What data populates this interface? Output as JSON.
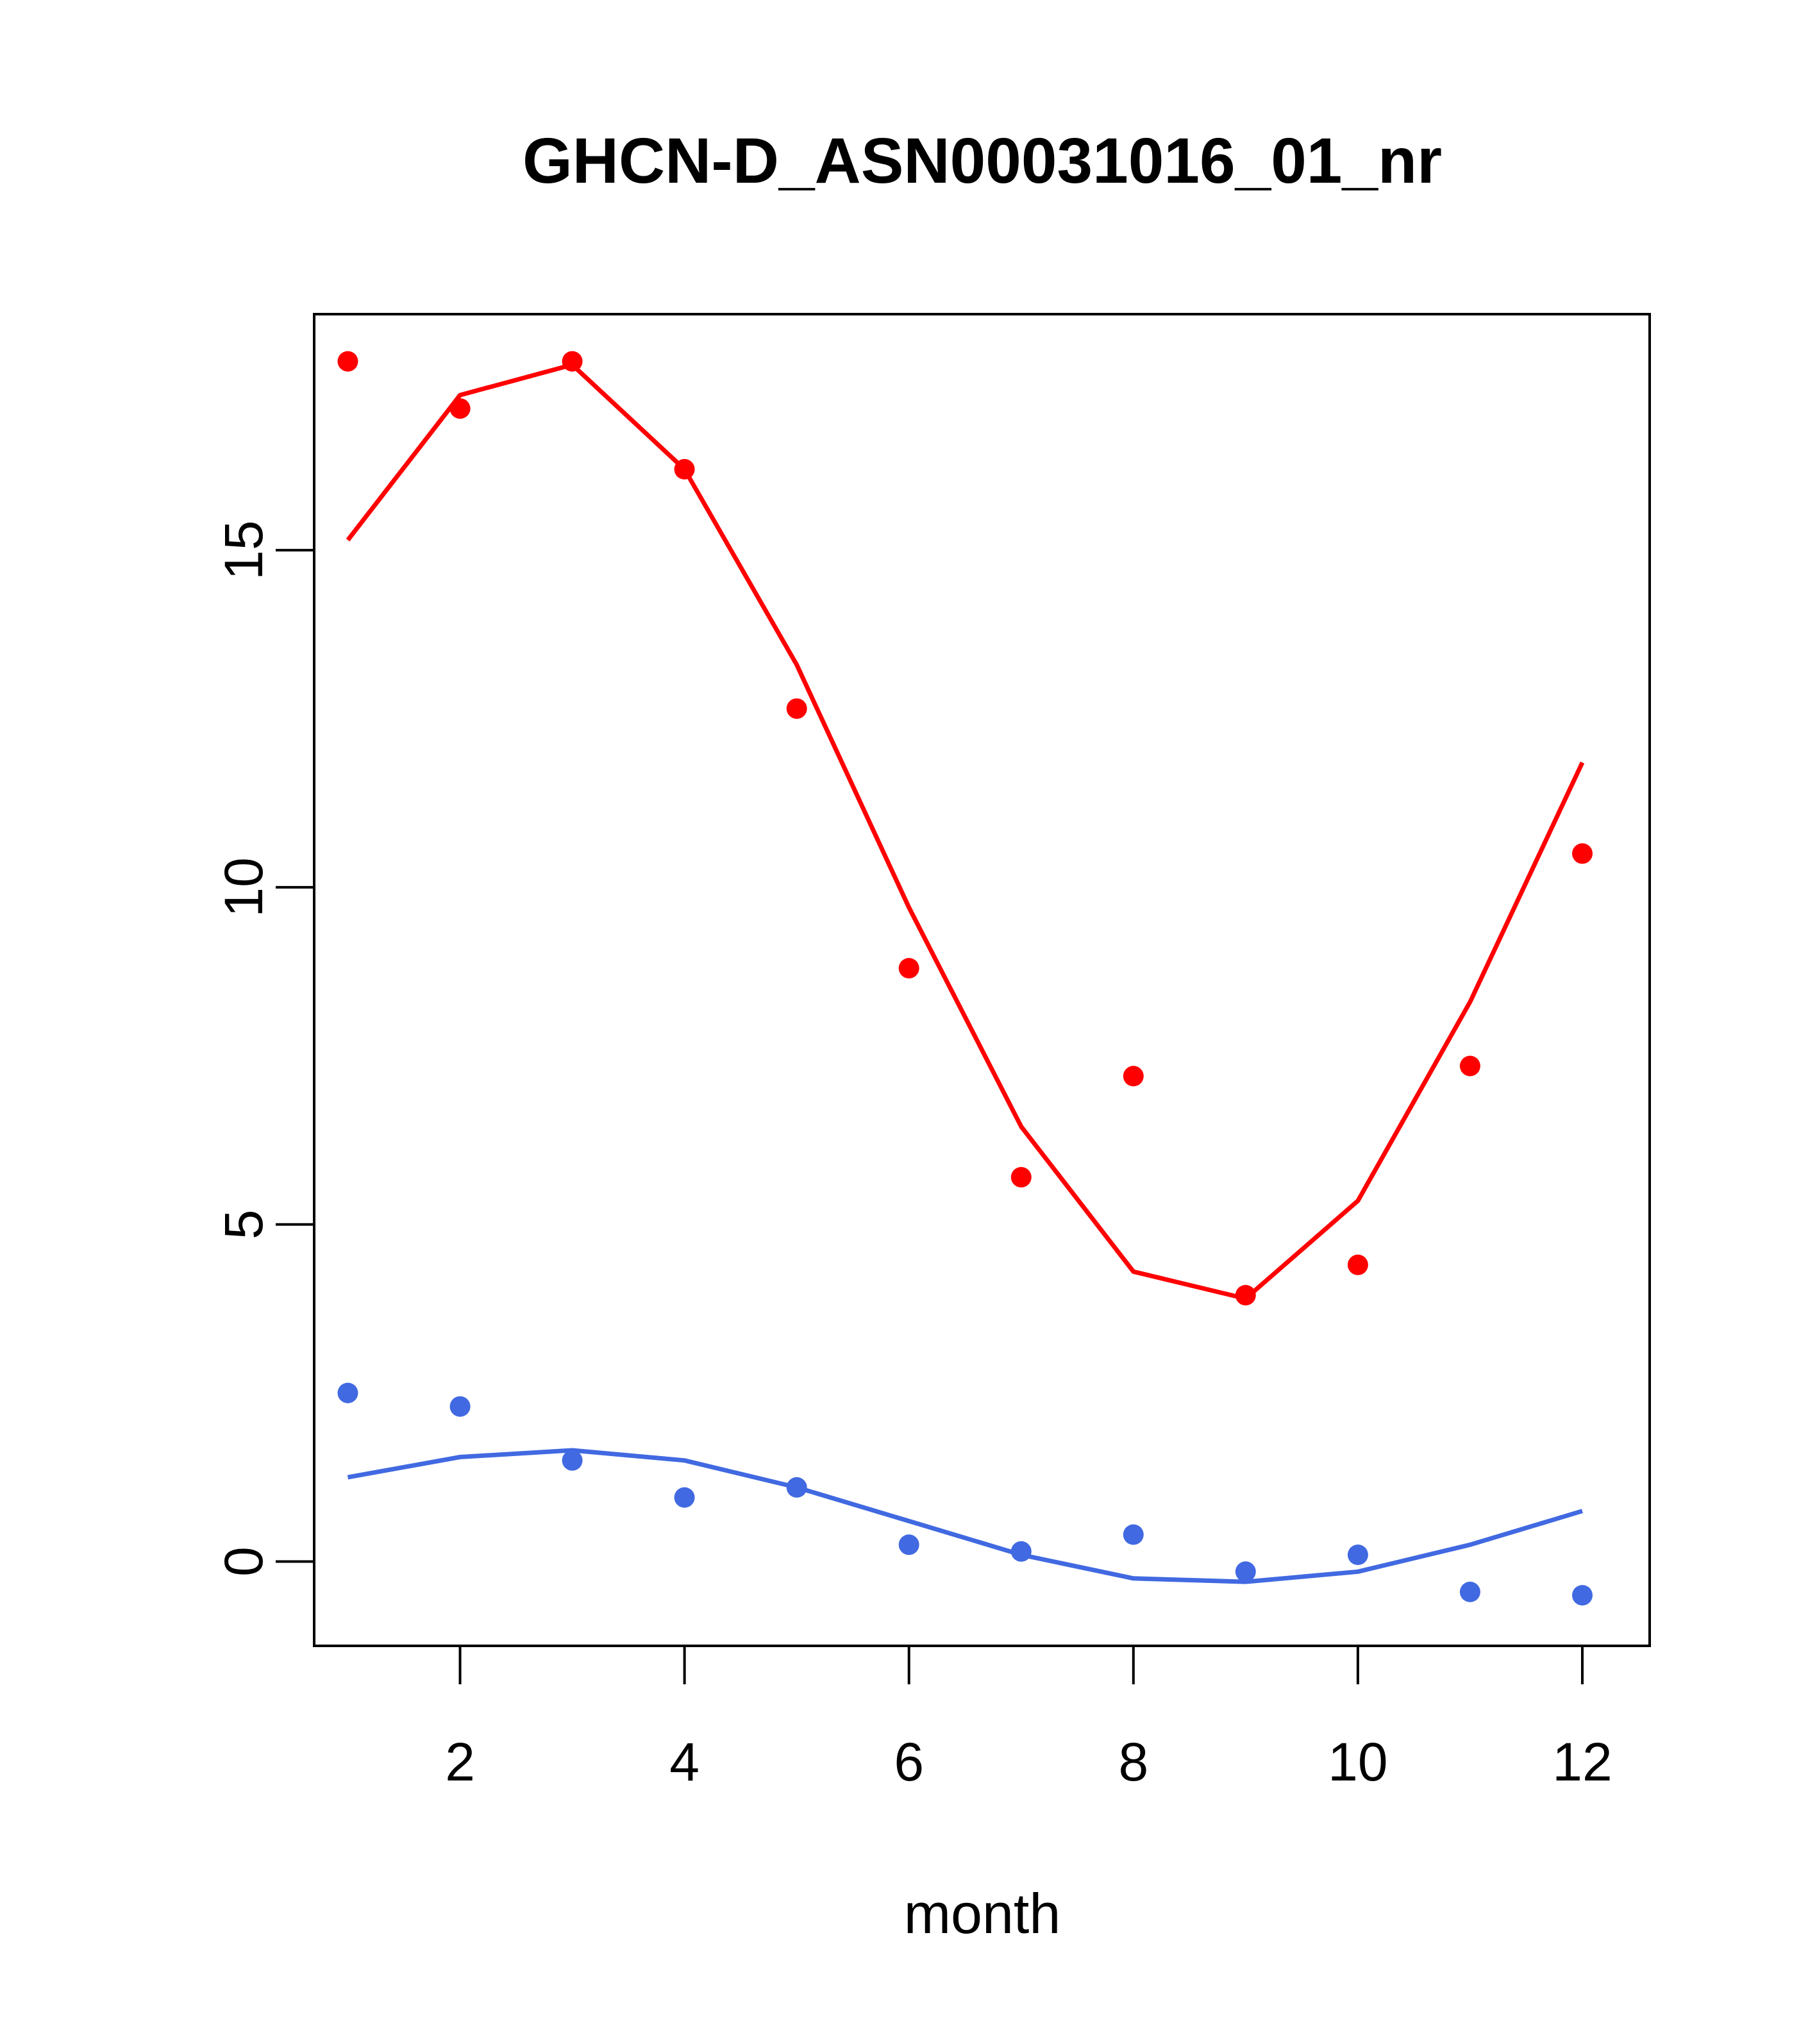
{
  "chart_data": {
    "type": "scatter",
    "title": "GHCN-D_ASN00031016_01_nr",
    "xlabel": "month",
    "ylabel": "",
    "xlim": [
      0.7,
      12.6
    ],
    "ylim": [
      -1.25,
      18.5
    ],
    "xticks": [
      2,
      4,
      6,
      8,
      10,
      12
    ],
    "xtick_labels": [
      "2",
      "4",
      "6",
      "8",
      "10",
      "12"
    ],
    "yticks": [
      0,
      5,
      10,
      15
    ],
    "ytick_labels": [
      "0",
      "5",
      "10",
      "15"
    ],
    "grid": false,
    "legend": "none",
    "series": [
      {
        "color": "#ff0000",
        "x": [
          1,
          2,
          3,
          4,
          5,
          6,
          7,
          8,
          9,
          10,
          11,
          12
        ],
        "points": [
          17.8,
          17.1,
          17.8,
          16.2,
          12.65,
          8.8,
          5.7,
          7.2,
          3.95,
          4.4,
          7.35,
          10.5
        ],
        "fit": [
          15.15,
          17.3,
          17.75,
          16.2,
          13.3,
          9.7,
          6.45,
          4.3,
          3.9,
          5.35,
          8.3,
          11.85
        ]
      },
      {
        "color": "#4169e1",
        "x": [
          1,
          2,
          3,
          4,
          5,
          6,
          7,
          8,
          9,
          10,
          11,
          12
        ],
        "points": [
          2.5,
          2.3,
          1.5,
          0.95,
          1.1,
          0.25,
          0.15,
          0.4,
          -0.15,
          0.1,
          -0.45,
          -0.5
        ],
        "fit": [
          1.25,
          1.55,
          1.65,
          1.5,
          1.1,
          0.6,
          0.1,
          -0.25,
          -0.3,
          -0.15,
          0.25,
          0.75
        ]
      }
    ]
  }
}
